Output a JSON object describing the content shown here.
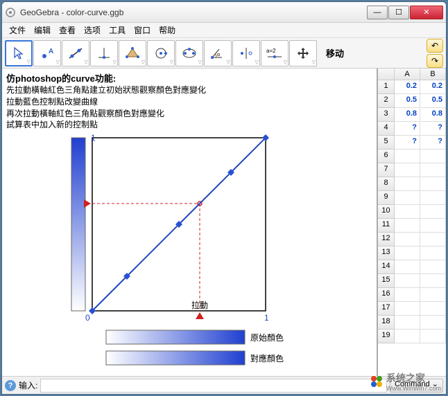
{
  "window": {
    "title": "GeoGebra - color-curve.ggb"
  },
  "menu": [
    "文件",
    "编辑",
    "查看",
    "选项",
    "工具",
    "窗口",
    "帮助"
  ],
  "toolbar_label": "移动",
  "description": {
    "heading": "仿photoshop的curve功能:",
    "lines": [
      "先拉動橫軸紅色三角點建立初始狀態觀察顏色對應變化",
      "拉動藍色控制點改變曲線",
      "再次拉動橫軸紅色三角點觀察顏色對應變化",
      "試算表中加入新的控制點"
    ]
  },
  "chart": {
    "xlim": [
      0,
      1
    ],
    "ylim": [
      0,
      1
    ],
    "axis_color": "#000000",
    "label_0": "0",
    "label_1": "1",
    "control_points": [
      [
        0,
        0
      ],
      [
        0.2,
        0.2
      ],
      [
        0.5,
        0.5
      ],
      [
        0.8,
        0.8
      ],
      [
        1,
        1
      ]
    ],
    "eval_x": 0.62,
    "eval_y": 0.62,
    "line_color": "#2048c0",
    "line_width": 2,
    "marker_color": "#2850d0",
    "marker_size": 10,
    "guide_color": "#d02020",
    "drag_label": "拉動",
    "vbar": {
      "x": -30,
      "w": 20,
      "grad_from": "#2040d0",
      "grad_to": "#ffffff"
    },
    "orig_label": "原始顏色",
    "mapped_label": "對應顏色",
    "bar_grad_from": "#ffffff",
    "bar_grad_to": "#2040d0"
  },
  "spreadsheet": {
    "cols": [
      "A",
      "B"
    ],
    "rows": [
      {
        "n": "1",
        "a": "0.2",
        "b": "0.2"
      },
      {
        "n": "2",
        "a": "0.5",
        "b": "0.5"
      },
      {
        "n": "3",
        "a": "0.8",
        "b": "0.8"
      },
      {
        "n": "4",
        "a": "?",
        "b": "?"
      },
      {
        "n": "5",
        "a": "?",
        "b": "?"
      },
      {
        "n": "6",
        "a": "",
        "b": ""
      },
      {
        "n": "7",
        "a": "",
        "b": ""
      },
      {
        "n": "8",
        "a": "",
        "b": ""
      },
      {
        "n": "9",
        "a": "",
        "b": ""
      },
      {
        "n": "10",
        "a": "",
        "b": ""
      },
      {
        "n": "11",
        "a": "",
        "b": ""
      },
      {
        "n": "12",
        "a": "",
        "b": ""
      },
      {
        "n": "13",
        "a": "",
        "b": ""
      },
      {
        "n": "14",
        "a": "",
        "b": ""
      },
      {
        "n": "15",
        "a": "",
        "b": ""
      },
      {
        "n": "16",
        "a": "",
        "b": ""
      },
      {
        "n": "17",
        "a": "",
        "b": ""
      },
      {
        "n": "18",
        "a": "",
        "b": ""
      },
      {
        "n": "19",
        "a": "",
        "b": ""
      }
    ]
  },
  "inputbar": {
    "label": "输入:",
    "cmd_label": "Command",
    "arrow": "⌄"
  },
  "watermark": {
    "text": "系统之家",
    "sub": "Www.WinWin7.com"
  }
}
